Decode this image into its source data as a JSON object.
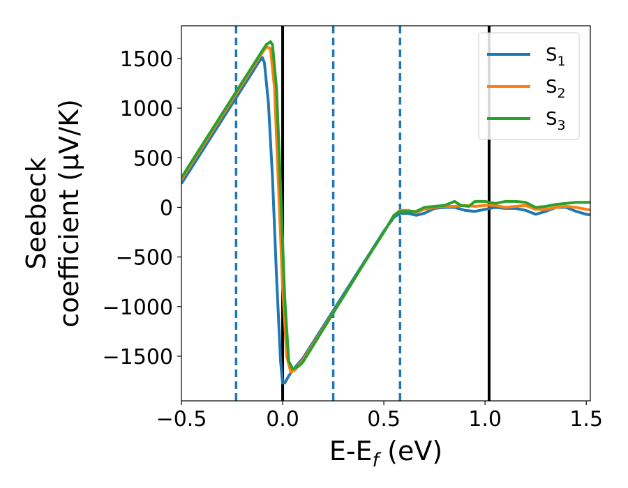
{
  "chart_data": {
    "type": "line",
    "xlabel": "E-E",
    "xlabel_sub": "f",
    "xlabel_unit": " (eV)",
    "ylabel_line1": "Seebeck",
    "ylabel_line2": "coefficient  (μV/K)",
    "xlim": [
      -0.5,
      1.52
    ],
    "ylim": [
      -1950,
      1830
    ],
    "xticks": [
      -0.5,
      0.0,
      0.5,
      1.0,
      1.5
    ],
    "xtick_labels": [
      "−0.5",
      "0.0",
      "0.5",
      "1.0",
      "1.5"
    ],
    "yticks": [
      -1500,
      -1000,
      -500,
      0,
      500,
      1000,
      1500
    ],
    "ytick_labels": [
      "−1500",
      "−1000",
      "−500",
      "0",
      "500",
      "1000",
      "1500"
    ],
    "grid": false,
    "legend_placement": "top-right",
    "vlines_solid": [
      0.0,
      1.02
    ],
    "vlines_dashed": [
      -0.23,
      0.25,
      0.58
    ],
    "series": [
      {
        "name": "S",
        "sub": "1",
        "color": "#1f77b4",
        "x": [
          -0.5,
          -0.4,
          -0.3,
          -0.2,
          -0.15,
          -0.12,
          -0.1,
          -0.09,
          -0.07,
          -0.05,
          -0.03,
          -0.01,
          0.0,
          0.01,
          0.03,
          0.05,
          0.1,
          0.2,
          0.3,
          0.4,
          0.5,
          0.55,
          0.58,
          0.62,
          0.66,
          0.7,
          0.75,
          0.8,
          0.85,
          0.9,
          0.95,
          1.0,
          1.05,
          1.1,
          1.15,
          1.2,
          1.25,
          1.3,
          1.35,
          1.4,
          1.45,
          1.5,
          1.52
        ],
        "y": [
          240,
          560,
          880,
          1200,
          1360,
          1460,
          1510,
          1460,
          1050,
          300,
          -700,
          -1550,
          -1770,
          -1770,
          -1700,
          -1640,
          -1520,
          -1200,
          -880,
          -560,
          -240,
          -100,
          -60,
          -60,
          -80,
          -60,
          -10,
          0,
          0,
          -30,
          -40,
          -20,
          0,
          -10,
          -10,
          -30,
          -70,
          -40,
          0,
          0,
          -40,
          -70,
          -75
        ]
      },
      {
        "name": "S",
        "sub": "2",
        "color": "#ff7f0e",
        "x": [
          -0.5,
          -0.4,
          -0.3,
          -0.2,
          -0.15,
          -0.1,
          -0.08,
          -0.06,
          -0.04,
          -0.02,
          0.0,
          0.02,
          0.04,
          0.06,
          0.1,
          0.2,
          0.3,
          0.4,
          0.5,
          0.55,
          0.58,
          0.62,
          0.66,
          0.7,
          0.75,
          0.8,
          0.85,
          0.9,
          0.95,
          1.0,
          1.05,
          1.1,
          1.15,
          1.2,
          1.25,
          1.3,
          1.35,
          1.4,
          1.45,
          1.5,
          1.52
        ],
        "y": [
          280,
          600,
          920,
          1240,
          1400,
          1560,
          1620,
          1600,
          1200,
          200,
          -800,
          -1500,
          -1660,
          -1640,
          -1540,
          -1220,
          -900,
          -570,
          -250,
          -80,
          -30,
          -30,
          -50,
          -20,
          0,
          10,
          10,
          20,
          10,
          20,
          20,
          0,
          10,
          20,
          -20,
          -20,
          0,
          10,
          0,
          -20,
          -25
        ]
      },
      {
        "name": "S",
        "sub": "3",
        "color": "#2ca02c",
        "x": [
          -0.5,
          -0.4,
          -0.3,
          -0.2,
          -0.15,
          -0.1,
          -0.08,
          -0.06,
          -0.05,
          -0.03,
          -0.01,
          0.01,
          0.03,
          0.05,
          0.08,
          0.1,
          0.2,
          0.3,
          0.4,
          0.5,
          0.55,
          0.58,
          0.62,
          0.66,
          0.7,
          0.75,
          0.8,
          0.85,
          0.88,
          0.92,
          0.95,
          1.0,
          1.05,
          1.1,
          1.15,
          1.2,
          1.25,
          1.3,
          1.35,
          1.4,
          1.45,
          1.5,
          1.52
        ],
        "y": [
          300,
          620,
          940,
          1260,
          1420,
          1580,
          1640,
          1670,
          1640,
          1200,
          200,
          -900,
          -1550,
          -1630,
          -1600,
          -1560,
          -1230,
          -900,
          -570,
          -250,
          -80,
          -40,
          -40,
          -40,
          0,
          10,
          20,
          60,
          20,
          10,
          60,
          60,
          40,
          60,
          60,
          50,
          0,
          10,
          30,
          40,
          50,
          50,
          50
        ]
      }
    ]
  }
}
